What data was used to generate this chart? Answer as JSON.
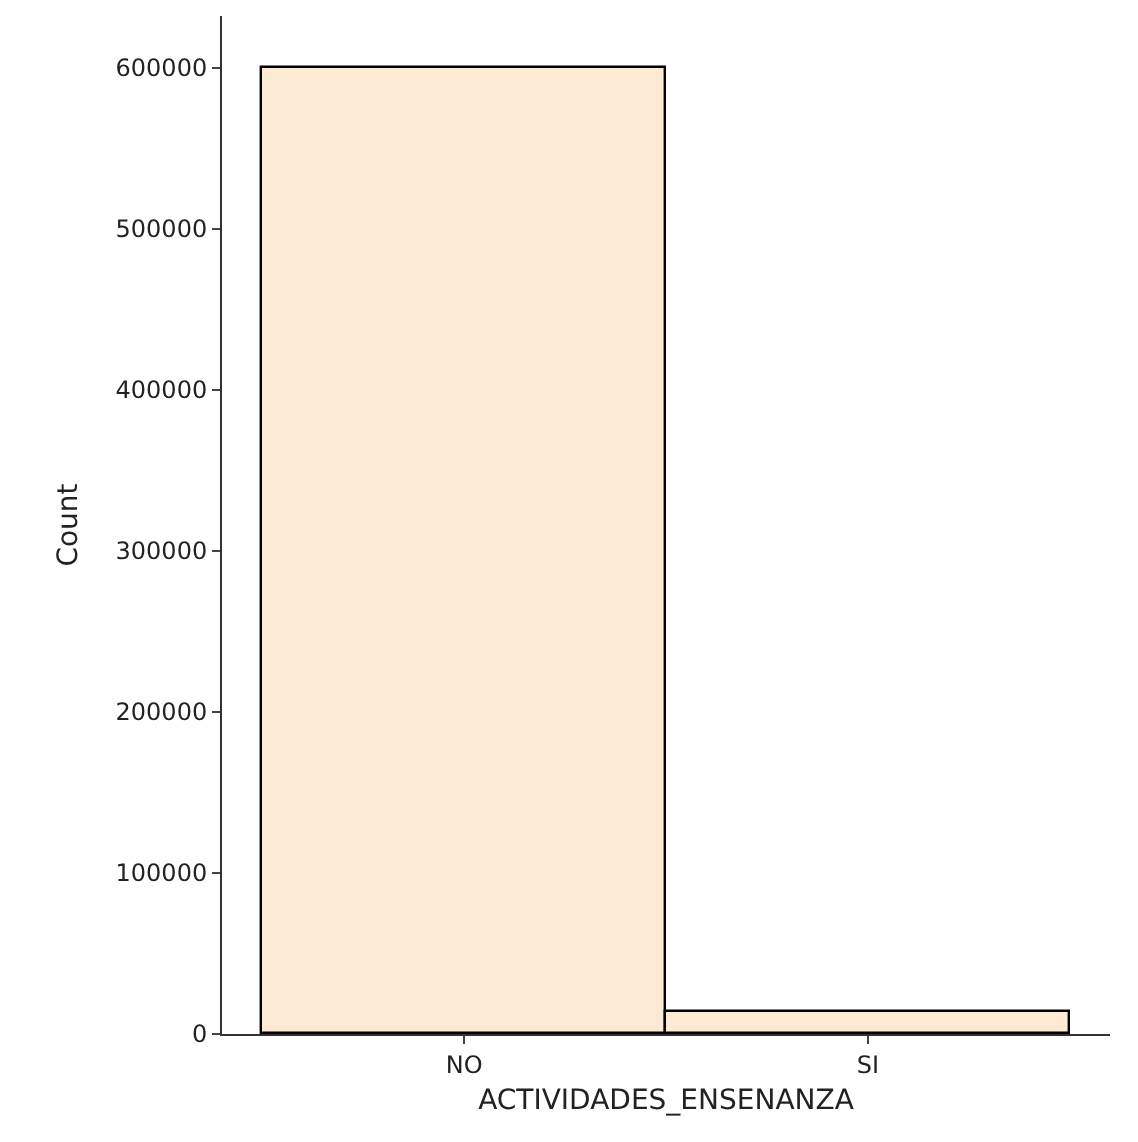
{
  "chart_data": {
    "type": "bar",
    "xlabel": "ACTIVIDADES_ENSENANZA",
    "ylabel": "Count",
    "categories": [
      "NO",
      "SI"
    ],
    "values": [
      600000,
      14000
    ],
    "color": "#fdead4",
    "ylim": [
      0,
      632000
    ],
    "yticks": [
      0,
      100000,
      200000,
      300000,
      400000,
      500000,
      600000
    ]
  }
}
